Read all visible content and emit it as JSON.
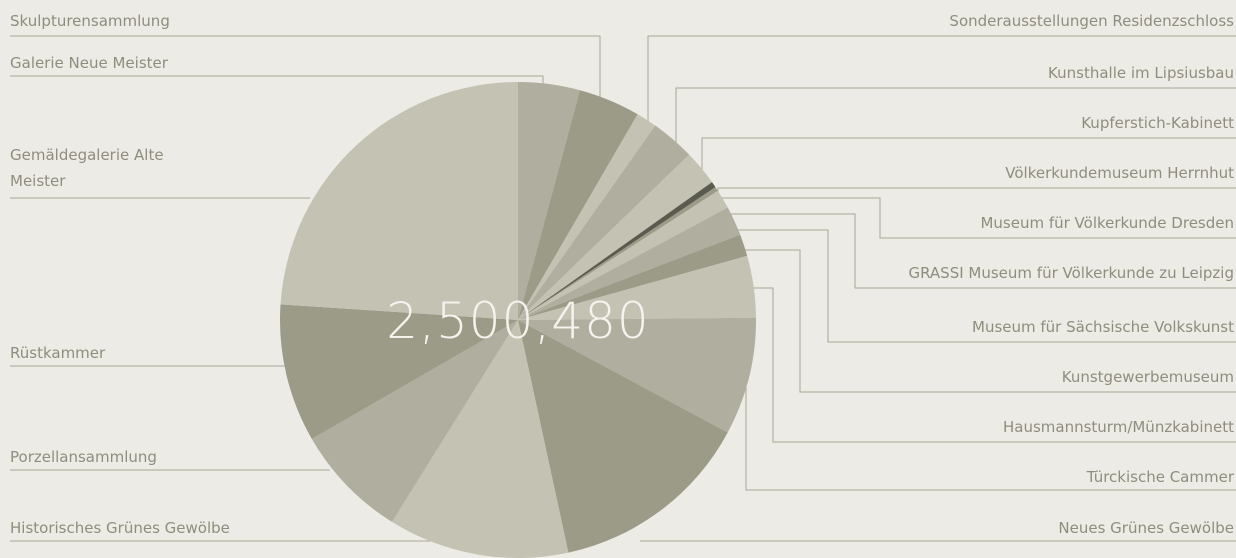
{
  "chart_data": {
    "type": "pie",
    "total": "2,500,480",
    "categories": [
      "Galerie Neue Meister",
      "Skulpturensammlung",
      "Sonderausstellungen Residenzschloss",
      "Kunsthalle im Lipsiusbau",
      "Kupferstich-Kabinett",
      "Völkerkundemuseum Herrnhut",
      "Museum für Völkerkunde Dresden",
      "GRASSI Museum für Völkerkunde zu Leipzig",
      "Museum für Sächsische Volkskunst",
      "Kunstgewerbemuseum",
      "Hausmannsturm/Münzkabinett",
      "Türckische Cammer",
      "Neues Grünes Gewölbe",
      "Historisches Grünes Gewölbe",
      "Porzellansammlung",
      "Rüstkammer",
      "Gemäldegalerie Alte Meister"
    ],
    "values": [
      4.2,
      4.2,
      1.4,
      3,
      2.4,
      0.4,
      0.3,
      1.3,
      2,
      1.5,
      4.2,
      8,
      13.8,
      12.3,
      7.8,
      9.4,
      24
    ],
    "colors": [
      "#b0ae9e",
      "#9c9b87",
      "#c4c2b3",
      "#b0ae9e",
      "#c4c2b3",
      "#5a5b4e",
      "#9c9b87",
      "#c4c2b3",
      "#b0ae9e",
      "#9c9b87",
      "#c4c2b3",
      "#b0ae9e",
      "#9c9b87",
      "#c4c2b3",
      "#b0ae9e",
      "#9c9b87",
      "#c4c2b3"
    ]
  }
}
